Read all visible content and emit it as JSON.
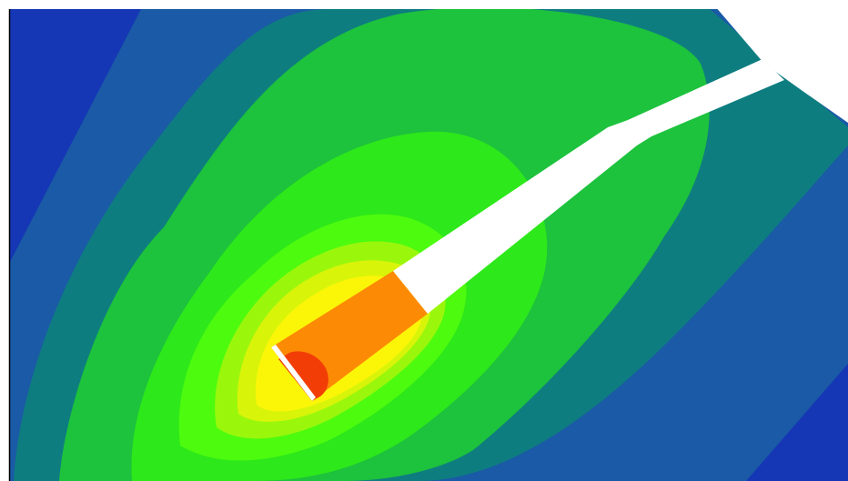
{
  "figure": {
    "kind": "filled-contour-plot",
    "colormap": [
      {
        "band": "lowest",
        "color": "#1537b5"
      },
      {
        "band": "low",
        "color": "#1a5aa6"
      },
      {
        "band": "teal",
        "color": "#0e7d80"
      },
      {
        "band": "green",
        "color": "#1dc23d"
      },
      {
        "band": "bright-green",
        "color": "#2de81a"
      },
      {
        "band": "lime",
        "color": "#4dfb0e"
      },
      {
        "band": "chartreuse",
        "color": "#9af70c"
      },
      {
        "band": "yellow-green",
        "color": "#d8f409"
      },
      {
        "band": "yellow",
        "color": "#fbf608"
      },
      {
        "band": "orange",
        "color": "#fd8a05"
      },
      {
        "band": "red-orange",
        "color": "#f23e06"
      }
    ],
    "background": "#ffffff",
    "masked_region_color": "#ffffff",
    "frame_color": "#000000"
  }
}
